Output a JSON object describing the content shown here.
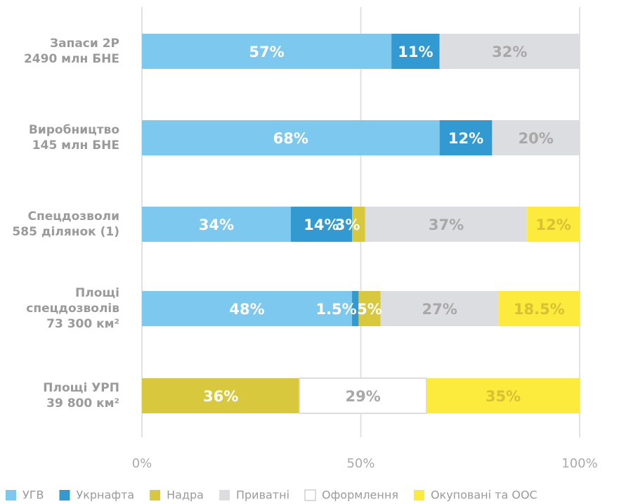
{
  "chart_data": {
    "type": "stacked-bar-horizontal",
    "categories": [
      [
        "Запаси 2P",
        "2490 млн БНЕ"
      ],
      [
        "Виробництво",
        "145 млн БНЕ"
      ],
      [
        "Спецдозволи",
        "585 ділянок (1)"
      ],
      [
        "Площі",
        "спецдозволів",
        "73 300 км²"
      ],
      [
        "Площі УРП",
        "39 800 км²"
      ]
    ],
    "series": [
      {
        "name": "УГВ",
        "color": "#7dc8ef",
        "label_color": "#ffffff",
        "values": [
          57,
          68,
          34,
          48,
          null
        ],
        "value_labels": [
          "57%",
          "68%",
          "34%",
          "48%",
          null
        ]
      },
      {
        "name": "Укрнафта",
        "color": "#3399d1",
        "label_color": "#ffffff",
        "values": [
          11,
          12,
          14,
          1.5,
          null
        ],
        "value_labels": [
          "11%",
          "12%",
          "14%",
          "1.5%",
          null
        ]
      },
      {
        "name": "Надра",
        "color": "#d8c83e",
        "label_color": "#ffffff",
        "values": [
          null,
          null,
          3,
          5,
          36
        ],
        "value_labels": [
          null,
          null,
          "3%",
          "5%",
          "36%"
        ]
      },
      {
        "name": "Приватні",
        "color": "#dcdde0",
        "label_color": "#a8a8a8",
        "values": [
          32,
          20,
          37,
          27,
          null
        ],
        "value_labels": [
          "32%",
          "20%",
          "37%",
          "27%",
          null
        ]
      },
      {
        "name": "Оформлення",
        "color": "#ffffff",
        "label_color": "#a8a8a8",
        "values": [
          null,
          null,
          null,
          null,
          29
        ],
        "value_labels": [
          null,
          null,
          null,
          null,
          "29%"
        ]
      },
      {
        "name": "Окуповані та ООС",
        "color": "#fcea3c",
        "label_color": "#d6c232",
        "values": [
          null,
          null,
          12,
          18.5,
          35
        ],
        "value_labels": [
          null,
          null,
          "12%",
          "18.5%",
          "35%"
        ]
      }
    ],
    "xlim": [
      0,
      100
    ],
    "xticks": [
      {
        "value": 0,
        "label": "0%"
      },
      {
        "value": 50,
        "label": "50%"
      },
      {
        "value": 100,
        "label": "100%"
      }
    ],
    "grid": true
  }
}
